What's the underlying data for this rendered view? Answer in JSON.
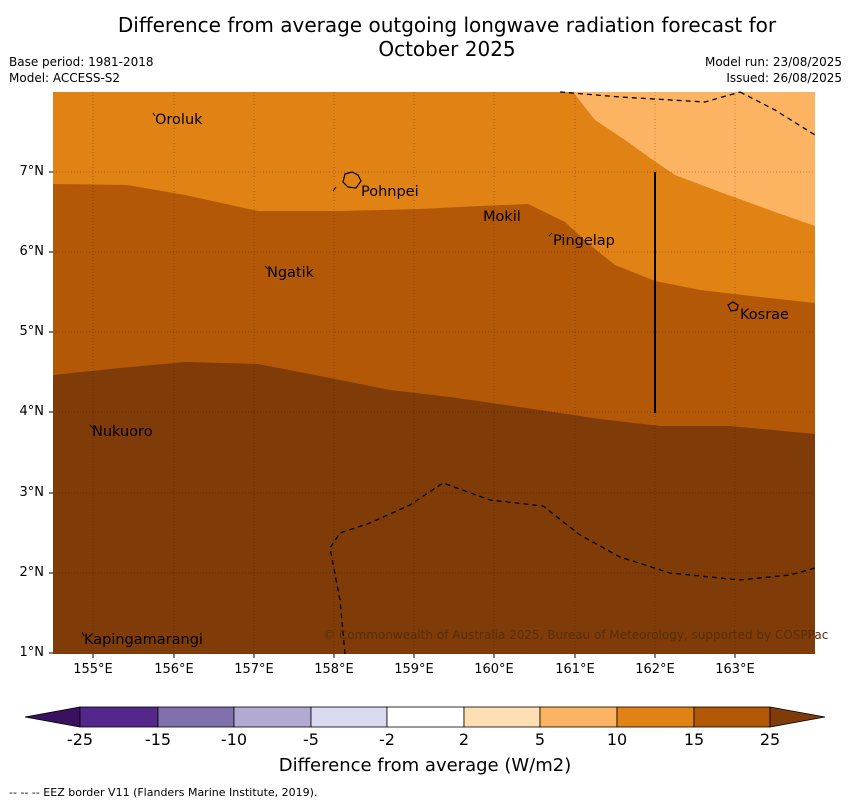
{
  "title_line1": "Difference from average outgoing longwave radiation forecast for",
  "title_line2": "October 2025",
  "meta_left": [
    "Base period: 1981-2018",
    "Model: ACCESS-S2"
  ],
  "meta_right": [
    "Model run: 23/08/2025",
    "Issued: 26/08/2025"
  ],
  "map": {
    "lon_range": [
      154.5,
      164.0
    ],
    "lat_range": [
      1.0,
      8.0
    ],
    "y_ticks": [
      "1°N",
      "2°N",
      "3°N",
      "4°N",
      "5°N",
      "6°N",
      "7°N"
    ],
    "x_ticks": [
      "155°E",
      "156°E",
      "157°E",
      "158°E",
      "159°E",
      "160°E",
      "161°E",
      "162°E",
      "163°E"
    ],
    "places": [
      {
        "name": "Oroluk",
        "lon": 155.75,
        "lat": 7.6
      },
      {
        "name": "Pohnpei",
        "lon": 158.3,
        "lat": 6.9
      },
      {
        "name": "Mokil",
        "lon": 159.75,
        "lat": 6.5
      },
      {
        "name": "Pingelap",
        "lon": 160.7,
        "lat": 6.2
      },
      {
        "name": "Ngatik",
        "lon": 157.1,
        "lat": 5.8
      },
      {
        "name": "Kosrae",
        "lon": 162.95,
        "lat": 5.3
      },
      {
        "name": "Nukuoro",
        "lon": 154.95,
        "lat": 3.85
      },
      {
        "name": "Kapingamarangi",
        "lon": 154.85,
        "lat": 1.2
      }
    ],
    "copyright": "© Commonwealth of Australia 2025, Bureau of Meteorology, supported by COSPPac"
  },
  "colorbar": {
    "labels": [
      "-25",
      "-15",
      "-10",
      "-5",
      "-2",
      "2",
      "5",
      "10",
      "15",
      "25"
    ],
    "colors": [
      "#3a1060",
      "#54288a",
      "#8170ae",
      "#b3aad4",
      "#d9d9ef",
      "#ffffff",
      "#fedfb4",
      "#fdb462",
      "#e08214",
      "#b35806",
      "#7f3b08"
    ],
    "title": "Difference from average (W/m2)"
  },
  "footer": "--  --  -- EEZ border V11 (Flanders Marine Institute, 2019)."
}
